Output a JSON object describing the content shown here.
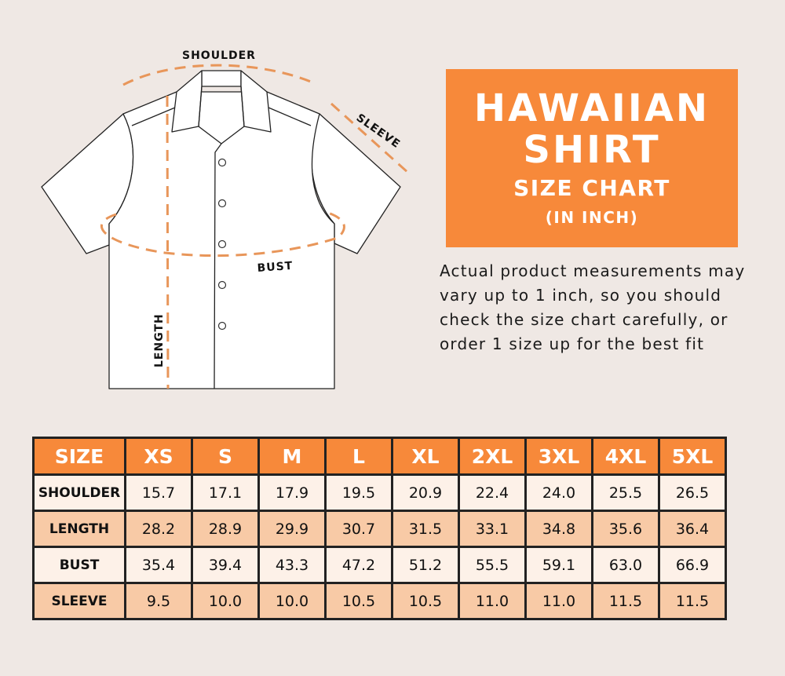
{
  "diagram": {
    "labels": {
      "shoulder": "SHOULDER",
      "sleeve": "SLEEVE",
      "bust": "BUST",
      "length": "LENGTH"
    },
    "colors": {
      "measure_line": "#e8965a",
      "outline": "#222222",
      "shirt_fill": "#ffffff"
    }
  },
  "title": {
    "line1": "HAWAIIAN",
    "line2": "SHIRT",
    "line3": "SIZE CHART",
    "line4": "(IN INCH)",
    "color": "#f7893a"
  },
  "note": "Actual product measurements may vary up to 1 inch, so you should check the size chart carefully, or order 1 size up for the best fit",
  "table": {
    "headers": [
      "SIZE",
      "XS",
      "S",
      "M",
      "L",
      "XL",
      "2XL",
      "3XL",
      "4XL",
      "5XL"
    ],
    "rows": [
      {
        "label": "SHOULDER",
        "values": [
          "15.7",
          "17.1",
          "17.9",
          "19.5",
          "20.9",
          "22.4",
          "24.0",
          "25.5",
          "26.5"
        ]
      },
      {
        "label": "LENGTH",
        "values": [
          "28.2",
          "28.9",
          "29.9",
          "30.7",
          "31.5",
          "33.1",
          "34.8",
          "35.6",
          "36.4"
        ]
      },
      {
        "label": "BUST",
        "values": [
          "35.4",
          "39.4",
          "43.3",
          "47.2",
          "51.2",
          "55.5",
          "59.1",
          "63.0",
          "66.9"
        ]
      },
      {
        "label": "SLEEVE",
        "values": [
          "9.5",
          "10.0",
          "10.0",
          "10.5",
          "10.5",
          "11.0",
          "11.0",
          "11.5",
          "11.5"
        ]
      }
    ],
    "colors": {
      "header": "#f7893a",
      "row_light": "#fdf1e8",
      "row_dark": "#f8caa6"
    }
  }
}
